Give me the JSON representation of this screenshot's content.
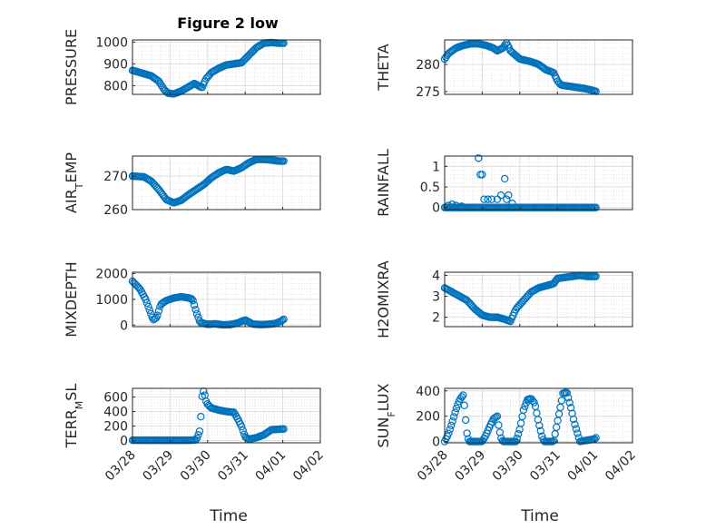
{
  "title": "Figure 2 low",
  "colors": {
    "marker": "#0072BD",
    "axis": "#262626",
    "grid": "#dfdfdf"
  },
  "chart_data": [
    {
      "type": "scatter",
      "ylabel": "PRESSURE",
      "title": "Figure 2 low",
      "xlim": [
        0,
        5
      ],
      "ylim": [
        760,
        1010
      ],
      "yticks": [
        800,
        900,
        1000
      ],
      "xticks": [
        "03/28",
        "03/29",
        "03/30",
        "03/31",
        "04/01",
        "04/02"
      ],
      "show_xticklabels": false,
      "keypoints": [
        [
          0.0,
          870
        ],
        [
          0.3,
          855
        ],
        [
          0.5,
          845
        ],
        [
          0.7,
          820
        ],
        [
          0.85,
          780
        ],
        [
          0.95,
          765
        ],
        [
          1.1,
          762
        ],
        [
          1.3,
          775
        ],
        [
          1.5,
          795
        ],
        [
          1.65,
          810
        ],
        [
          1.75,
          800
        ],
        [
          1.85,
          790
        ],
        [
          1.95,
          830
        ],
        [
          2.1,
          860
        ],
        [
          2.3,
          880
        ],
        [
          2.5,
          895
        ],
        [
          2.7,
          900
        ],
        [
          2.9,
          905
        ],
        [
          3.1,
          940
        ],
        [
          3.3,
          975
        ],
        [
          3.5,
          995
        ],
        [
          3.7,
          998
        ],
        [
          3.9,
          995
        ],
        [
          4.05,
          995
        ]
      ]
    },
    {
      "type": "scatter",
      "ylabel": "THETA",
      "xlim": [
        0,
        5
      ],
      "ylim": [
        274.5,
        284.5
      ],
      "yticks": [
        275,
        280
      ],
      "xticks": [
        "03/28",
        "03/29",
        "03/30",
        "03/31",
        "04/01",
        "04/02"
      ],
      "show_xticklabels": false,
      "keypoints": [
        [
          0.0,
          281
        ],
        [
          0.1,
          282
        ],
        [
          0.3,
          283
        ],
        [
          0.5,
          283.5
        ],
        [
          0.7,
          283.8
        ],
        [
          0.9,
          283.8
        ],
        [
          1.1,
          283.5
        ],
        [
          1.3,
          283
        ],
        [
          1.4,
          282.5
        ],
        [
          1.55,
          283
        ],
        [
          1.65,
          284
        ],
        [
          1.75,
          282.5
        ],
        [
          2.0,
          281
        ],
        [
          2.3,
          280.5
        ],
        [
          2.5,
          280
        ],
        [
          2.7,
          279
        ],
        [
          2.9,
          278.5
        ],
        [
          3.0,
          277
        ],
        [
          3.1,
          276.2
        ],
        [
          3.3,
          276
        ],
        [
          3.5,
          275.8
        ],
        [
          3.7,
          275.6
        ],
        [
          3.9,
          275.3
        ],
        [
          4.05,
          275
        ]
      ]
    },
    {
      "type": "scatter",
      "ylabel": "AIR_TEMP",
      "xlim": [
        0,
        5
      ],
      "ylim": [
        260,
        276
      ],
      "yticks": [
        260,
        270
      ],
      "xticks": [
        "03/28",
        "03/29",
        "03/30",
        "03/31",
        "04/01",
        "04/02"
      ],
      "show_xticklabels": false,
      "keypoints": [
        [
          0.0,
          270
        ],
        [
          0.3,
          269.8
        ],
        [
          0.5,
          268.5
        ],
        [
          0.7,
          266
        ],
        [
          0.9,
          263
        ],
        [
          1.1,
          262
        ],
        [
          1.3,
          262.8
        ],
        [
          1.5,
          264.5
        ],
        [
          1.7,
          266
        ],
        [
          1.9,
          267.5
        ],
        [
          2.1,
          269.5
        ],
        [
          2.3,
          271
        ],
        [
          2.5,
          272
        ],
        [
          2.7,
          271.5
        ],
        [
          2.9,
          272.5
        ],
        [
          3.1,
          274
        ],
        [
          3.3,
          275
        ],
        [
          3.5,
          275
        ],
        [
          3.7,
          274.8
        ],
        [
          3.9,
          274.5
        ],
        [
          4.05,
          274.5
        ]
      ]
    },
    {
      "type": "scatter",
      "ylabel": "RAINFALL",
      "xlim": [
        0,
        5
      ],
      "ylim": [
        -0.05,
        1.25
      ],
      "yticks": [
        0,
        0.5,
        1
      ],
      "xticks": [
        "03/28",
        "03/29",
        "03/30",
        "03/31",
        "04/01",
        "04/02"
      ],
      "show_xticklabels": false,
      "keypoints": [
        [
          0.0,
          0
        ],
        [
          4.05,
          0
        ]
      ],
      "extra_points": [
        [
          0.1,
          0.05
        ],
        [
          0.2,
          0.08
        ],
        [
          0.3,
          0.05
        ],
        [
          0.45,
          0.03
        ],
        [
          0.9,
          1.2
        ],
        [
          0.95,
          0.8
        ],
        [
          1.0,
          0.8
        ],
        [
          1.05,
          0.2
        ],
        [
          1.15,
          0.2
        ],
        [
          1.25,
          0.2
        ],
        [
          1.4,
          0.2
        ],
        [
          1.5,
          0.3
        ],
        [
          1.6,
          0.7
        ],
        [
          1.65,
          0.2
        ],
        [
          1.7,
          0.3
        ],
        [
          1.8,
          0.1
        ]
      ]
    },
    {
      "type": "scatter",
      "ylabel": "MIXDEPTH",
      "xlim": [
        0,
        5
      ],
      "ylim": [
        -60,
        2050
      ],
      "yticks": [
        0,
        1000,
        2000
      ],
      "xticks": [
        "03/28",
        "03/29",
        "03/30",
        "03/31",
        "04/01",
        "04/02"
      ],
      "show_xticklabels": false,
      "keypoints": [
        [
          0.0,
          1700
        ],
        [
          0.2,
          1400
        ],
        [
          0.35,
          1000
        ],
        [
          0.45,
          600
        ],
        [
          0.55,
          200
        ],
        [
          0.65,
          300
        ],
        [
          0.75,
          800
        ],
        [
          0.9,
          950
        ],
        [
          1.1,
          1050
        ],
        [
          1.3,
          1100
        ],
        [
          1.5,
          1050
        ],
        [
          1.6,
          1000
        ],
        [
          1.7,
          500
        ],
        [
          1.8,
          100
        ],
        [
          2.0,
          30
        ],
        [
          2.2,
          50
        ],
        [
          2.4,
          10
        ],
        [
          2.6,
          20
        ],
        [
          2.8,
          80
        ],
        [
          3.0,
          200
        ],
        [
          3.2,
          40
        ],
        [
          3.4,
          20
        ],
        [
          3.6,
          30
        ],
        [
          3.8,
          60
        ],
        [
          3.95,
          150
        ],
        [
          4.05,
          250
        ]
      ]
    },
    {
      "type": "scatter",
      "ylabel": "H2OMIXRA",
      "xlim": [
        0,
        5
      ],
      "ylim": [
        1.55,
        4.15
      ],
      "yticks": [
        2,
        3,
        4
      ],
      "xticks": [
        "03/28",
        "03/29",
        "03/30",
        "03/31",
        "04/01",
        "04/02"
      ],
      "show_xticklabels": false,
      "keypoints": [
        [
          0.0,
          3.4
        ],
        [
          0.2,
          3.2
        ],
        [
          0.4,
          3.0
        ],
        [
          0.6,
          2.8
        ],
        [
          0.8,
          2.4
        ],
        [
          1.0,
          2.1
        ],
        [
          1.2,
          2.0
        ],
        [
          1.4,
          2.0
        ],
        [
          1.6,
          1.9
        ],
        [
          1.75,
          1.8
        ],
        [
          1.9,
          2.4
        ],
        [
          2.1,
          2.8
        ],
        [
          2.3,
          3.2
        ],
        [
          2.5,
          3.4
        ],
        [
          2.7,
          3.5
        ],
        [
          2.9,
          3.6
        ],
        [
          3.0,
          3.85
        ],
        [
          3.2,
          3.9
        ],
        [
          3.4,
          3.95
        ],
        [
          3.6,
          4.0
        ],
        [
          3.8,
          3.95
        ],
        [
          4.05,
          3.95
        ]
      ]
    },
    {
      "type": "scatter",
      "ylabel": "TERR_MSL",
      "xlim": [
        0,
        5
      ],
      "ylim": [
        -30,
        720
      ],
      "yticks": [
        0,
        200,
        400,
        600
      ],
      "xticks": [
        "03/28",
        "03/29",
        "03/30",
        "03/31",
        "04/01",
        "04/02"
      ],
      "show_xticklabels": true,
      "keypoints": [
        [
          0.0,
          5
        ],
        [
          0.5,
          5
        ],
        [
          1.0,
          5
        ],
        [
          1.5,
          5
        ],
        [
          1.7,
          10
        ],
        [
          1.8,
          150
        ],
        [
          1.85,
          600
        ],
        [
          1.9,
          700
        ],
        [
          1.95,
          550
        ],
        [
          2.0,
          500
        ],
        [
          2.1,
          450
        ],
        [
          2.3,
          420
        ],
        [
          2.5,
          400
        ],
        [
          2.7,
          390
        ],
        [
          2.8,
          300
        ],
        [
          2.9,
          200
        ],
        [
          3.0,
          50
        ],
        [
          3.1,
          20
        ],
        [
          3.3,
          40
        ],
        [
          3.5,
          80
        ],
        [
          3.7,
          150
        ],
        [
          4.0,
          160
        ],
        [
          4.05,
          160
        ]
      ]
    },
    {
      "type": "scatter",
      "ylabel": "SUN_FLUX",
      "xlim": [
        0,
        5
      ],
      "ylim": [
        -10,
        420
      ],
      "yticks": [
        0,
        200,
        400
      ],
      "xticks": [
        "03/28",
        "03/29",
        "03/30",
        "03/31",
        "04/01",
        "04/02"
      ],
      "show_xticklabels": true,
      "keypoints": [
        [
          0.0,
          0
        ],
        [
          0.1,
          60
        ],
        [
          0.2,
          150
        ],
        [
          0.3,
          250
        ],
        [
          0.4,
          330
        ],
        [
          0.5,
          370
        ],
        [
          0.55,
          200
        ],
        [
          0.6,
          50
        ],
        [
          0.65,
          0
        ],
        [
          1.0,
          0
        ],
        [
          1.1,
          50
        ],
        [
          1.2,
          120
        ],
        [
          1.3,
          180
        ],
        [
          1.4,
          200
        ],
        [
          1.45,
          100
        ],
        [
          1.5,
          30
        ],
        [
          1.55,
          0
        ],
        [
          1.9,
          0
        ],
        [
          2.0,
          100
        ],
        [
          2.1,
          250
        ],
        [
          2.2,
          330
        ],
        [
          2.3,
          340
        ],
        [
          2.4,
          300
        ],
        [
          2.5,
          150
        ],
        [
          2.6,
          30
        ],
        [
          2.65,
          0
        ],
        [
          2.9,
          0
        ],
        [
          3.0,
          150
        ],
        [
          3.1,
          300
        ],
        [
          3.15,
          380
        ],
        [
          3.25,
          390
        ],
        [
          3.35,
          280
        ],
        [
          3.45,
          150
        ],
        [
          3.55,
          50
        ],
        [
          3.6,
          0
        ],
        [
          4.0,
          20
        ],
        [
          4.05,
          40
        ]
      ]
    }
  ],
  "xlabel": "Time"
}
